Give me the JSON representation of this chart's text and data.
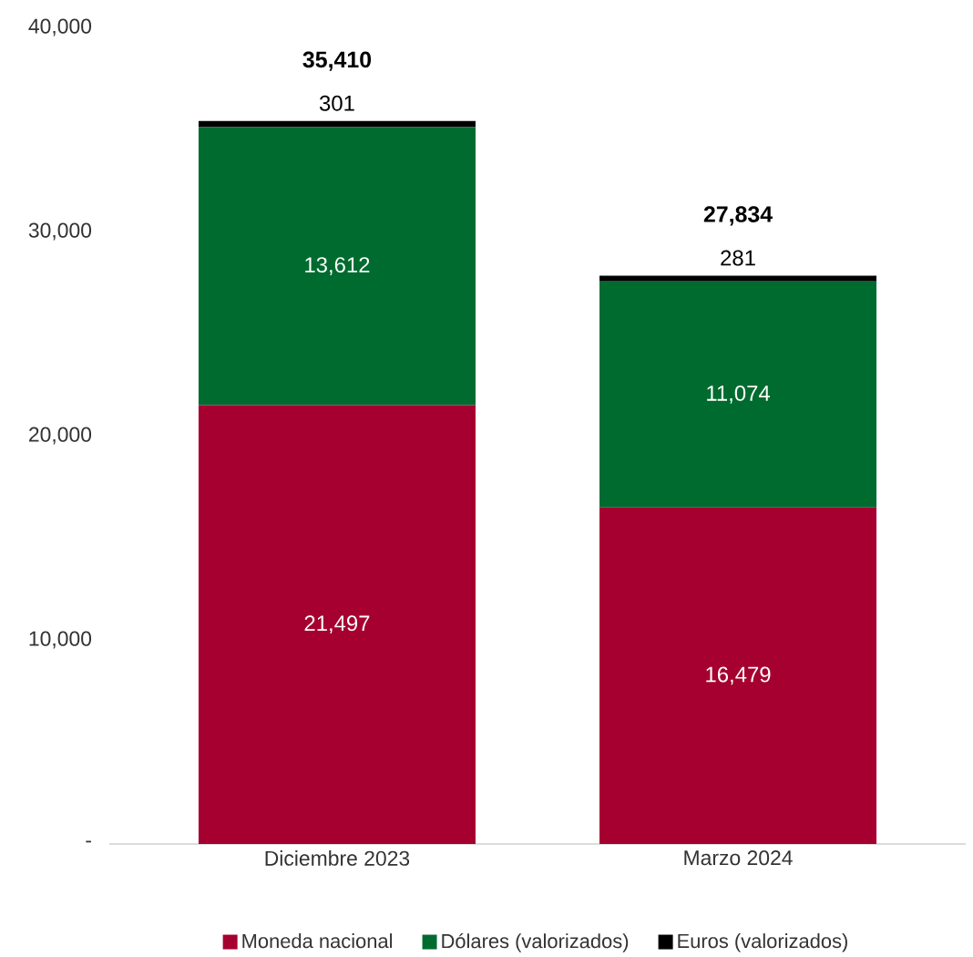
{
  "chart_data": {
    "type": "bar",
    "stacked": true,
    "categories": [
      "Diciembre 2023",
      "Marzo 2024"
    ],
    "series": [
      {
        "name": "Moneda nacional",
        "color": "#a50030",
        "values": [
          21497,
          16479
        ],
        "value_labels": [
          "21,497",
          "16,479"
        ]
      },
      {
        "name": "Dólares (valorizados)",
        "color": "#006b2f",
        "values": [
          13612,
          11074
        ],
        "value_labels": [
          "13,612",
          "11,074"
        ]
      },
      {
        "name": "Euros (valorizados)",
        "color": "#000000",
        "values": [
          301,
          281
        ],
        "value_labels": [
          "301",
          "281"
        ]
      }
    ],
    "totals": [
      "35,410",
      "27,834"
    ],
    "ylim": [
      0,
      40000
    ],
    "yticks": [
      {
        "value": 0,
        "label": "-"
      },
      {
        "value": 10000,
        "label": "10,000"
      },
      {
        "value": 20000,
        "label": "20,000"
      },
      {
        "value": 30000,
        "label": "30,000"
      },
      {
        "value": 40000,
        "label": "40,000"
      }
    ],
    "legend": "bottom"
  }
}
